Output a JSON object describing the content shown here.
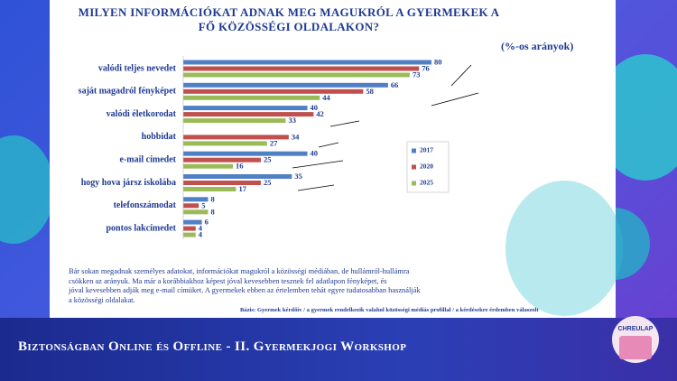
{
  "chart_data": {
    "type": "bar",
    "orientation": "horizontal",
    "title": "MILYEN INFORMÁCIÓKAT ADNAK MEG MAGUKRÓL A GYERMEKEK A FŐ KÖZÖSSÉGI OLDALAKON?",
    "subtitle": "(%-os arányok)",
    "categories": [
      "valódi teljes nevedet",
      "saját magadról fényképet",
      "valódi életkorodat",
      "hobbidat",
      "e-mail címedet",
      "hogy hova jársz iskolába",
      "telefonszámodat",
      "pontos lakcímedet"
    ],
    "series": [
      {
        "name": "2017",
        "color": "#4f7fc4",
        "values": [
          80,
          66,
          40,
          null,
          40,
          35,
          8,
          6
        ]
      },
      {
        "name": "2020",
        "color": "#c0504d",
        "values": [
          76,
          58,
          42,
          34,
          25,
          25,
          5,
          4
        ]
      },
      {
        "name": "2025",
        "color": "#9bbb59",
        "values": [
          73,
          44,
          33,
          27,
          16,
          17,
          8,
          4
        ]
      }
    ],
    "legend": "right"
  },
  "slide": {
    "body_text": [
      "Bár sokan megadnak személyes adatokat, információkat magukról a közösségi médiában, de hullámról-hullámra",
      "csökken az arányuk. Ma már a korábbiakhoz képest jóval kevesebben tesznek fel adatlapon fényképet, és",
      "jóval kevesebben adják meg e-mail címüket. A gyermekek ebben az értelemben tehát egyre tudatosabban használják",
      "a közösségi oldalakat."
    ],
    "source": "Bázis: Gyermek kérdőív / a gyermek rendelkezik valahol közösségi médiás profillal / a kérdésekre érdemben válaszolt",
    "footer": "Biztonságban Online és Offline - II. Gyermekjogi Workshop",
    "logo_text": "CHREULAP"
  }
}
